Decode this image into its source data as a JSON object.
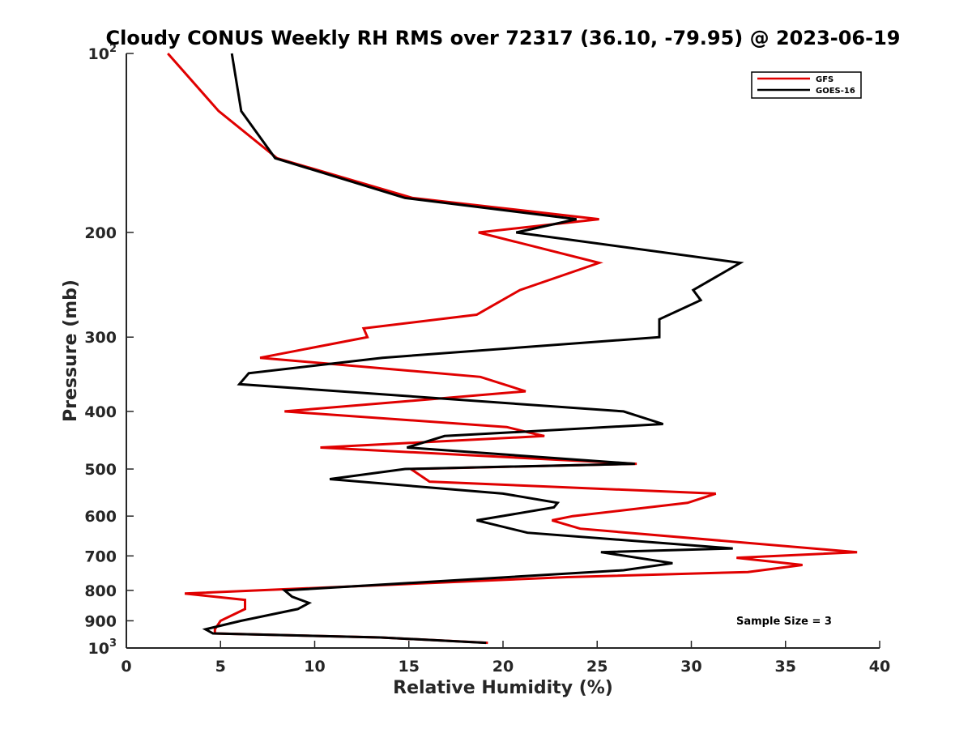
{
  "chart_data": {
    "type": "line",
    "title": "Cloudy CONUS Weekly RH RMS over 72317 (36.10, -79.95) @ 2023-06-19",
    "xlabel": "Relative Humidity (%)",
    "ylabel": "Pressure (mb)",
    "xlim": [
      0,
      40
    ],
    "ylim": [
      100,
      1000
    ],
    "y_scale": "log",
    "y_reversed": true,
    "x_ticks": [
      0,
      5,
      10,
      15,
      20,
      25,
      30,
      35,
      40
    ],
    "y_ticks": [
      {
        "value": 100,
        "label": "10",
        "sup": "2"
      },
      {
        "value": 200,
        "label": "200",
        "sup": ""
      },
      {
        "value": 300,
        "label": "300",
        "sup": ""
      },
      {
        "value": 400,
        "label": "400",
        "sup": ""
      },
      {
        "value": 500,
        "label": "500",
        "sup": ""
      },
      {
        "value": 600,
        "label": "600",
        "sup": ""
      },
      {
        "value": 700,
        "label": "700",
        "sup": ""
      },
      {
        "value": 800,
        "label": "800",
        "sup": ""
      },
      {
        "value": 900,
        "label": "900",
        "sup": ""
      },
      {
        "value": 1000,
        "label": "10",
        "sup": "3"
      }
    ],
    "grid": false,
    "legend_position": "top-right",
    "annotation": "Sample Size = 3",
    "series": [
      {
        "name": "GFS",
        "color": "#e00000",
        "points": [
          [
            2.2,
            100
          ],
          [
            4.9,
            125
          ],
          [
            8.0,
            150
          ],
          [
            15.2,
            175
          ],
          [
            25.1,
            190
          ],
          [
            18.7,
            200
          ],
          [
            25.1,
            225
          ],
          [
            20.9,
            250
          ],
          [
            18.6,
            275
          ],
          [
            12.6,
            290
          ],
          [
            12.8,
            300
          ],
          [
            7.1,
            325
          ],
          [
            18.8,
            350
          ],
          [
            21.2,
            370
          ],
          [
            8.4,
            400
          ],
          [
            20.2,
            425
          ],
          [
            21.5,
            435
          ],
          [
            22.2,
            440
          ],
          [
            10.3,
            460
          ],
          [
            27.1,
            490
          ],
          [
            15.1,
            500
          ],
          [
            16.1,
            525
          ],
          [
            31.3,
            550
          ],
          [
            29.8,
            570
          ],
          [
            23.7,
            600
          ],
          [
            22.6,
            610
          ],
          [
            24.1,
            630
          ],
          [
            38.8,
            690
          ],
          [
            32.4,
            705
          ],
          [
            35.9,
            725
          ],
          [
            33.0,
            745
          ],
          [
            23.4,
            760
          ],
          [
            3.1,
            810
          ],
          [
            6.3,
            830
          ],
          [
            6.3,
            860
          ],
          [
            5.0,
            900
          ],
          [
            4.7,
            930
          ],
          [
            4.7,
            945
          ],
          [
            13.5,
            960
          ],
          [
            19.2,
            980
          ]
        ]
      },
      {
        "name": "GOES-16",
        "color": "#000000",
        "points": [
          [
            5.6,
            100
          ],
          [
            6.1,
            125
          ],
          [
            7.9,
            150
          ],
          [
            14.8,
            175
          ],
          [
            23.9,
            190
          ],
          [
            20.7,
            200
          ],
          [
            32.6,
            225
          ],
          [
            30.1,
            250
          ],
          [
            30.5,
            260
          ],
          [
            28.3,
            280
          ],
          [
            28.3,
            300
          ],
          [
            13.6,
            325
          ],
          [
            6.5,
            345
          ],
          [
            6.0,
            360
          ],
          [
            26.4,
            400
          ],
          [
            28.5,
            420
          ],
          [
            16.9,
            440
          ],
          [
            14.9,
            460
          ],
          [
            27.0,
            490
          ],
          [
            14.8,
            500
          ],
          [
            10.8,
            520
          ],
          [
            20.0,
            550
          ],
          [
            22.9,
            570
          ],
          [
            22.7,
            580
          ],
          [
            18.6,
            610
          ],
          [
            21.3,
            640
          ],
          [
            32.2,
            680
          ],
          [
            25.2,
            690
          ],
          [
            29.0,
            720
          ],
          [
            26.4,
            740
          ],
          [
            8.4,
            800
          ],
          [
            8.8,
            820
          ],
          [
            9.7,
            840
          ],
          [
            9.1,
            860
          ],
          [
            6.1,
            900
          ],
          [
            4.2,
            930
          ],
          [
            4.6,
            945
          ],
          [
            13.5,
            960
          ],
          [
            19.1,
            980
          ]
        ]
      }
    ]
  }
}
